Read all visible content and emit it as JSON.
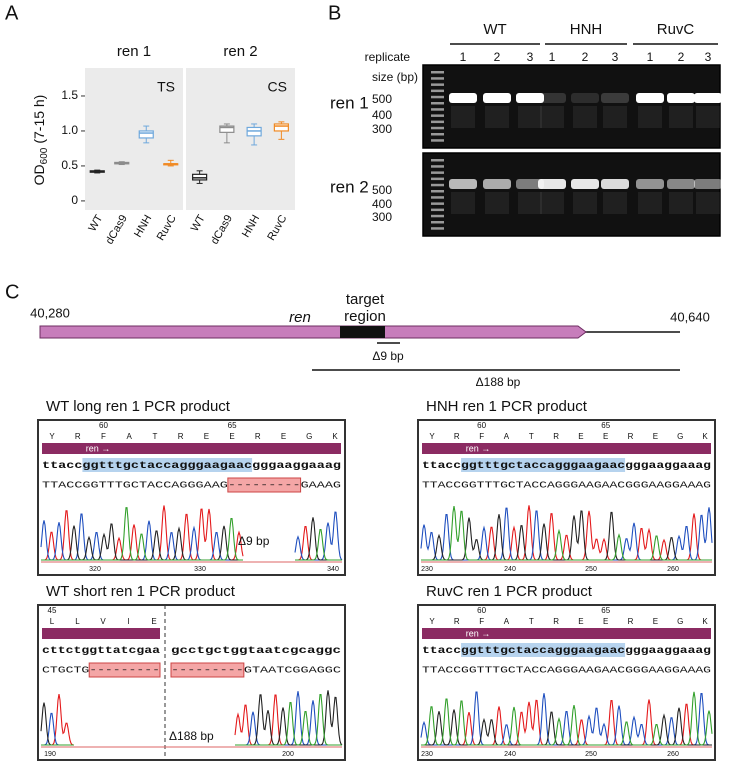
{
  "panel_labels": [
    "A",
    "B",
    "C"
  ],
  "chart_data": [
    {
      "type": "box",
      "title": "ren 1",
      "annotation": "TS",
      "y_label": "OD",
      "y_label_sub": "600",
      "y_label_rest": "(7-15 h)",
      "ylim": [
        -0.13,
        1.9
      ],
      "yticks": [
        0,
        0.5,
        {
          "value": 1,
          "label": "1.0"
        },
        1.5
      ],
      "categories": [
        "WT",
        "dCas9",
        "HNH",
        "RuvC"
      ],
      "colors": [
        "#222222",
        "#8c8c8c",
        "#6fa8dc",
        "#f08a24"
      ],
      "boxes": [
        {
          "min": 0.4,
          "q1": 0.41,
          "median": 0.42,
          "q3": 0.43,
          "max": 0.44
        },
        {
          "min": 0.52,
          "q1": 0.53,
          "median": 0.54,
          "q3": 0.55,
          "max": 0.56
        },
        {
          "min": 0.83,
          "q1": 0.9,
          "median": 0.97,
          "q3": 1.0,
          "max": 1.07
        },
        {
          "min": 0.5,
          "q1": 0.52,
          "median": 0.53,
          "q3": 0.53,
          "max": 0.58
        }
      ]
    },
    {
      "type": "box",
      "title": "ren 2",
      "annotation": "CS",
      "ylim": [
        -0.13,
        1.9
      ],
      "categories": [
        "WT",
        "dCas9",
        "HNH",
        "RuvC"
      ],
      "colors": [
        "#222222",
        "#8c8c8c",
        "#6fa8dc",
        "#f08a24"
      ],
      "boxes": [
        {
          "min": 0.25,
          "q1": 0.3,
          "median": 0.33,
          "q3": 0.38,
          "max": 0.43
        },
        {
          "min": 0.83,
          "q1": 0.98,
          "median": 1.05,
          "q3": 1.07,
          "max": 1.1
        },
        {
          "min": 0.8,
          "q1": 0.93,
          "median": 1.0,
          "q3": 1.05,
          "max": 1.1
        },
        {
          "min": 0.88,
          "q1": 1.0,
          "median": 1.07,
          "q3": 1.1,
          "max": 1.13
        }
      ]
    }
  ],
  "gel": {
    "groups": [
      "WT",
      "HNH",
      "RuvC"
    ],
    "replicate_label": "replicate",
    "replicates": [
      "1",
      "2",
      "3"
    ],
    "size_label": "size (bp)",
    "rows": [
      {
        "label": "ren 1",
        "sizes": [
          "500",
          "400",
          "300"
        ]
      },
      {
        "label": "ren 2",
        "sizes": [
          "500",
          "400",
          "300"
        ]
      }
    ]
  },
  "map": {
    "start": "40,280",
    "end": "40,640",
    "gene": "ren",
    "target": [
      "target",
      "region"
    ],
    "deletions": [
      "Δ9 bp",
      "Δ188 bp"
    ]
  },
  "traces": [
    {
      "title": "WT long ren 1 PCR product",
      "aa_numbers": [
        "60",
        "65"
      ],
      "aa": [
        "Y",
        "R",
        "F",
        "A",
        "T",
        "R",
        "E",
        "E",
        "R",
        "E",
        "G",
        "K"
      ],
      "gene_label": "ren →",
      "segments": [
        {
          "ref": "ttaccggtttgctaccagggaagaacgggaaggaaag",
          "read": "TTACCGGTTTGCTACCAGGGAAG---------GAAAG"
        }
      ],
      "deletion": "Δ9 bp",
      "axis": [
        "320",
        "330",
        "340"
      ]
    },
    {
      "title": "HNH ren 1 PCR product",
      "aa_numbers": [
        "60",
        "65"
      ],
      "aa": [
        "Y",
        "R",
        "F",
        "A",
        "T",
        "R",
        "E",
        "E",
        "R",
        "E",
        "G",
        "K"
      ],
      "gene_label": "ren →",
      "segments": [
        {
          "ref": "ttaccggtttgctaccagggaagaacgggaaggaaag",
          "read": "TTACCGGTTTGCTACCAGGGAAGAACGGGAAGGAAAG"
        }
      ],
      "axis": [
        "230",
        "240",
        "250",
        "260"
      ]
    },
    {
      "title": "WT short ren 1 PCR product",
      "aa_numbers": [
        "45"
      ],
      "aa": [
        "L",
        "L",
        "V",
        "I",
        "E"
      ],
      "segments": [
        {
          "ref": "cttctggttatcgaa",
          "read": "CTGCTG---------"
        },
        {
          "ref": "gcctgctggtaatcgcaggc",
          "read": "---------GTAATCGGAGGC"
        }
      ],
      "deletion": "Δ188 bp",
      "axis": [
        "190",
        "200"
      ]
    },
    {
      "title": "RuvC ren 1 PCR product",
      "aa_numbers": [
        "60",
        "65"
      ],
      "aa": [
        "Y",
        "R",
        "F",
        "A",
        "T",
        "R",
        "E",
        "E",
        "R",
        "E",
        "G",
        "K"
      ],
      "gene_label": "ren →",
      "segments": [
        {
          "ref": "ttaccggtttgctaccagggaagaacgggaaggaaag",
          "read": "TTACCGGTTTGCTACCAGGGAAGAACGGGAAGGAAAG"
        }
      ],
      "axis": [
        "230",
        "240",
        "250",
        "260"
      ]
    }
  ]
}
